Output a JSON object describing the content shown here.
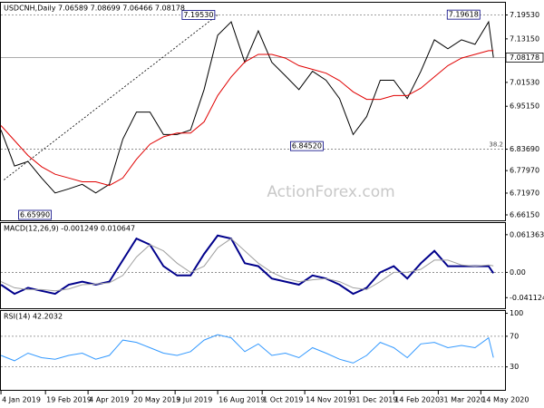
{
  "chart_data": [
    {
      "type": "line",
      "title": "USDCNH,Daily 7.06589 7.08699 7.06466 7.08178",
      "x": [
        "2019-01-04",
        "2019-01-18",
        "2019-02-01",
        "2019-02-15",
        "2019-03-01",
        "2019-03-15",
        "2019-03-29",
        "2019-04-12",
        "2019-04-26",
        "2019-05-10",
        "2019-05-24",
        "2019-06-07",
        "2019-06-21",
        "2019-07-05",
        "2019-07-19",
        "2019-08-02",
        "2019-08-16",
        "2019-08-30",
        "2019-09-13",
        "2019-09-27",
        "2019-10-11",
        "2019-10-25",
        "2019-11-08",
        "2019-11-22",
        "2019-12-06",
        "2019-12-20",
        "2020-01-03",
        "2020-01-17",
        "2020-01-31",
        "2020-02-14",
        "2020-02-28",
        "2020-03-13",
        "2020-03-27",
        "2020-04-10",
        "2020-04-24",
        "2020-05-08",
        "2020-05-22",
        "2020-05-27"
      ],
      "xlim": [
        "2019-01-03",
        "2020-06-08"
      ],
      "ylim": [
        6.647,
        7.228
      ],
      "yticks": [
        {
          "value": 7.1953,
          "label": "7.19530"
        },
        {
          "value": 7.1315,
          "label": "7.13150"
        },
        {
          "value": 7.0153,
          "label": "7.01530"
        },
        {
          "value": 6.9515,
          "label": "6.95150"
        },
        {
          "value": 6.8369,
          "label": "6.83690"
        },
        {
          "value": 6.7797,
          "label": "6.77970"
        },
        {
          "value": 6.7197,
          "label": "6.71970"
        },
        {
          "value": 6.6615,
          "label": "6.66150"
        }
      ],
      "series": [
        {
          "color": "#000000",
          "values": [
            6.888,
            6.792,
            6.804,
            6.76,
            6.72,
            6.731,
            6.743,
            6.72,
            6.743,
            6.864,
            6.936,
            6.936,
            6.876,
            6.876,
            6.888,
            6.996,
            7.141,
            7.177,
            7.069,
            7.153,
            7.069,
            7.033,
            6.996,
            7.045,
            7.021,
            6.972,
            6.876,
            6.924,
            7.021,
            7.021,
            6.972,
            7.045,
            7.129,
            7.105,
            7.129,
            7.117,
            7.177,
            7.08178
          ]
        },
        {
          "color": "#e00000",
          "values": [
            6.9,
            6.86,
            6.82,
            6.79,
            6.77,
            6.76,
            6.75,
            6.75,
            6.74,
            6.76,
            6.81,
            6.85,
            6.87,
            6.88,
            6.88,
            6.91,
            6.98,
            7.03,
            7.07,
            7.09,
            7.09,
            7.08,
            7.06,
            7.05,
            7.04,
            7.02,
            6.99,
            6.97,
            6.97,
            6.98,
            6.98,
            7.0,
            7.03,
            7.06,
            7.08,
            7.09,
            7.1,
            7.1
          ]
        }
      ],
      "levels": [
        {
          "value": 7.1953
        },
        {
          "value": 6.8369,
          "fib": 38.2
        }
      ],
      "last_price": {
        "value": 7.08178,
        "label": "7.08178"
      },
      "annotations": [
        {
          "x": "2019-08-13",
          "value": 7.1953,
          "label": "7.19530"
        },
        {
          "x": "2020-05-13",
          "value": 7.19618,
          "label": "7.19618"
        },
        {
          "x": "2019-12-03",
          "value": 6.8452,
          "label": "6.84520"
        },
        {
          "x": "2019-02-25",
          "value": 6.6599,
          "label": "6.65990"
        }
      ],
      "trendline": {
        "x": [
          "2019-01-07",
          "2019-08-16"
        ],
        "values": [
          6.755,
          7.1953
        ]
      },
      "watermark": "ActionForex.com"
    },
    {
      "type": "line",
      "title": "MACD(12,26,9) -0.001249 0.010647",
      "x": [
        "2019-01-04",
        "2019-01-18",
        "2019-02-01",
        "2019-02-15",
        "2019-03-01",
        "2019-03-15",
        "2019-03-29",
        "2019-04-12",
        "2019-04-26",
        "2019-05-10",
        "2019-05-24",
        "2019-06-07",
        "2019-06-21",
        "2019-07-05",
        "2019-07-19",
        "2019-08-02",
        "2019-08-16",
        "2019-08-30",
        "2019-09-13",
        "2019-09-27",
        "2019-10-11",
        "2019-10-25",
        "2019-11-08",
        "2019-11-22",
        "2019-12-06",
        "2019-12-20",
        "2020-01-03",
        "2020-01-17",
        "2020-01-31",
        "2020-02-14",
        "2020-02-28",
        "2020-03-13",
        "2020-03-27",
        "2020-04-10",
        "2020-04-24",
        "2020-05-08",
        "2020-05-22",
        "2020-05-27"
      ],
      "xlim": [
        "2019-01-03",
        "2020-06-08"
      ],
      "ylim": [
        -0.0584,
        0.0803
      ],
      "yticks": [
        0.061363,
        {
          "value": 0,
          "label": "0.00"
        },
        -0.041124
      ],
      "series": [
        {
          "color": "#00008b",
          "values": [
            -0.02,
            -0.035,
            -0.025,
            -0.03,
            -0.035,
            -0.02,
            -0.015,
            -0.02,
            -0.015,
            0.02,
            0.055,
            0.045,
            0.01,
            -0.005,
            -0.005,
            0.03,
            0.06,
            0.055,
            0.015,
            0.01,
            -0.01,
            -0.015,
            -0.02,
            -0.005,
            -0.01,
            -0.02,
            -0.035,
            -0.025,
            0,
            0.01,
            -0.01,
            0.015,
            0.035,
            0.01,
            0.01,
            0.01,
            0.01,
            -0.001249
          ]
        },
        {
          "color": "#a0a0a0",
          "values": [
            -0.015,
            -0.025,
            -0.028,
            -0.028,
            -0.03,
            -0.027,
            -0.02,
            -0.019,
            -0.017,
            -0.005,
            0.025,
            0.045,
            0.035,
            0.015,
            0,
            0.01,
            0.04,
            0.055,
            0.035,
            0.015,
            0,
            -0.01,
            -0.015,
            -0.012,
            -0.01,
            -0.015,
            -0.025,
            -0.028,
            -0.015,
            0,
            0,
            0.005,
            0.02,
            0.02,
            0.012,
            0.01,
            0.012,
            0.010647
          ]
        }
      ],
      "levels": [
        {
          "value": 0
        }
      ]
    },
    {
      "type": "line",
      "title": "RSI(14) 42.2032",
      "x": [
        "2019-01-04",
        "2019-01-18",
        "2019-02-01",
        "2019-02-15",
        "2019-03-01",
        "2019-03-15",
        "2019-03-29",
        "2019-04-12",
        "2019-04-26",
        "2019-05-10",
        "2019-05-24",
        "2019-06-07",
        "2019-06-21",
        "2019-07-05",
        "2019-07-19",
        "2019-08-02",
        "2019-08-16",
        "2019-08-30",
        "2019-09-13",
        "2019-09-27",
        "2019-10-11",
        "2019-10-25",
        "2019-11-08",
        "2019-11-22",
        "2019-12-06",
        "2019-12-20",
        "2020-01-03",
        "2020-01-17",
        "2020-01-31",
        "2020-02-14",
        "2020-02-28",
        "2020-03-13",
        "2020-03-27",
        "2020-04-10",
        "2020-04-24",
        "2020-05-08",
        "2020-05-22",
        "2020-05-27"
      ],
      "xlim": [
        "2019-01-03",
        "2020-06-08"
      ],
      "ylim": [
        0,
        103
      ],
      "yticks": [
        100,
        70,
        30
      ],
      "series": [
        {
          "color": "#3399ff",
          "values": [
            45,
            38,
            48,
            42,
            40,
            45,
            48,
            40,
            45,
            65,
            62,
            55,
            48,
            45,
            50,
            65,
            72,
            68,
            50,
            60,
            45,
            48,
            42,
            55,
            48,
            40,
            35,
            45,
            62,
            55,
            42,
            60,
            62,
            55,
            58,
            55,
            68,
            42.2032
          ]
        }
      ],
      "levels": [
        {
          "value": 70
        },
        {
          "value": 30
        }
      ],
      "xticks": [
        {
          "value": "2019-01-04",
          "label": "4 Jan 2019"
        },
        {
          "value": "2019-02-19",
          "label": "19 Feb 2019"
        },
        {
          "value": "2019-04-04",
          "label": "4 Apr 2019"
        },
        {
          "value": "2019-05-20",
          "label": "20 May 2019"
        },
        {
          "value": "2019-07-03",
          "label": "3 Jul 2019"
        },
        {
          "value": "2019-08-16",
          "label": "16 Aug 2019"
        },
        {
          "value": "2019-10-01",
          "label": "1 Oct 2019"
        },
        {
          "value": "2019-11-14",
          "label": "14 Nov 2019"
        },
        {
          "value": "2019-12-31",
          "label": "31 Dec 2019"
        },
        {
          "value": "2020-02-14",
          "label": "14 Feb 2020"
        },
        {
          "value": "2020-03-31",
          "label": "31 Mar 2020"
        },
        {
          "value": "2020-05-14",
          "label": "14 May 2020"
        }
      ]
    }
  ]
}
